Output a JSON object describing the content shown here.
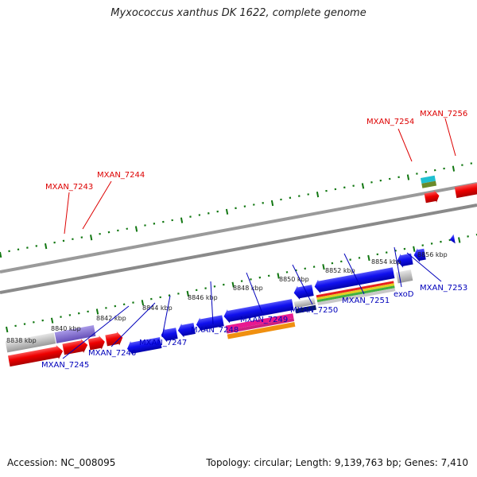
{
  "title": "Myxococcus xanthus DK 1622, complete genome",
  "footer": {
    "accession": "Accession: NC_008095",
    "summary": "Topology: circular; Length: 9,139,763 bp; Genes: 7,410"
  },
  "colors": {
    "forward_label": "#dd0000",
    "reverse_label": "#0000bb",
    "forward_gene": "#ee0000",
    "reverse_gene": "#0000ee",
    "tick": "#117711",
    "backbone": "#888888"
  },
  "scale_labels": [
    "8838 kbp",
    "8840 kbp",
    "8842 kbp",
    "8844 kbp",
    "8846 kbp",
    "8848 kbp",
    "8850 kbp",
    "8852 kbp",
    "8854 kbp",
    "8856 kbp"
  ],
  "forward_labels": [
    "MXAN_7243",
    "MXAN_7244",
    "MXAN_7254",
    "MXAN_7256"
  ],
  "reverse_labels": [
    "MXAN_7245",
    "MXAN_7246",
    "MXAN_7247",
    "MXAN_7248",
    "MXAN_7249",
    "MXAN_7250",
    "MXAN_7251",
    "exoD",
    "MXAN_7253"
  ]
}
